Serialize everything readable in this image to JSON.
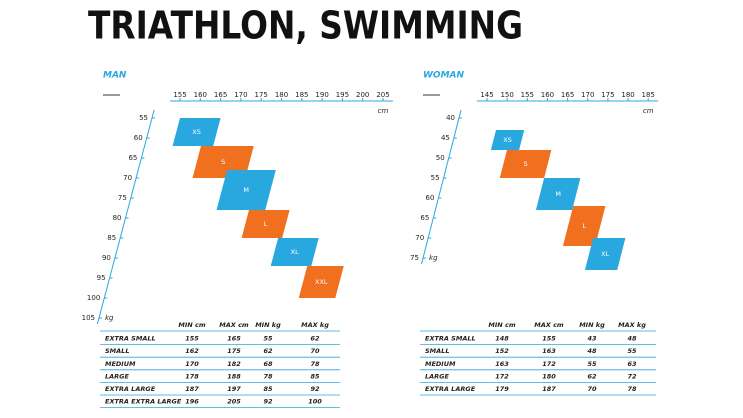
{
  "title": "TRIATHLON, SWIMMING",
  "panels": [
    {
      "label": "MAN",
      "cm_unit": "cm",
      "kg_unit": "kg",
      "cm_ticks": [
        155,
        160,
        165,
        170,
        175,
        180,
        185,
        190,
        195,
        200,
        205
      ],
      "kg_ticks": [
        55,
        60,
        65,
        70,
        75,
        80,
        85,
        90,
        95,
        100,
        105
      ],
      "table_header": [
        "MIN cm",
        "MAX cm",
        "MIN kg",
        "MAX kg"
      ],
      "rows": [
        {
          "name": "EXTRA SMALL",
          "short": "XS",
          "values": [
            155,
            165,
            55,
            62
          ]
        },
        {
          "name": "SMALL",
          "short": "S",
          "values": [
            162,
            175,
            62,
            70
          ]
        },
        {
          "name": "MEDIUM",
          "short": "M",
          "values": [
            170,
            182,
            68,
            78
          ]
        },
        {
          "name": "LARGE",
          "short": "L",
          "values": [
            178,
            188,
            78,
            85
          ]
        },
        {
          "name": "EXTRA LARGE",
          "short": "XL",
          "values": [
            187,
            197,
            85,
            92
          ]
        },
        {
          "name": "EXTRA EXTRA LARGE",
          "short": "XXL",
          "values": [
            196,
            205,
            92,
            100
          ]
        }
      ]
    },
    {
      "label": "WOMAN",
      "cm_unit": "cm",
      "kg_unit": "kg",
      "cm_ticks": [
        145,
        150,
        155,
        160,
        165,
        170,
        175,
        180,
        185
      ],
      "kg_ticks": [
        40,
        45,
        50,
        55,
        60,
        65,
        70,
        75
      ],
      "table_header": [
        "MIN cm",
        "MAX cm",
        "MIN kg",
        "MAX kg"
      ],
      "rows": [
        {
          "name": "EXTRA SMALL",
          "short": "XS",
          "values": [
            148,
            155,
            43,
            48
          ]
        },
        {
          "name": "SMALL",
          "short": "S",
          "values": [
            152,
            163,
            48,
            55
          ]
        },
        {
          "name": "MEDIUM",
          "short": "M",
          "values": [
            163,
            172,
            55,
            63
          ]
        },
        {
          "name": "LARGE",
          "short": "L",
          "values": [
            172,
            180,
            62,
            72
          ]
        },
        {
          "name": "EXTRA LARGE",
          "short": "XL",
          "values": [
            179,
            187,
            70,
            78
          ]
        }
      ]
    }
  ]
}
